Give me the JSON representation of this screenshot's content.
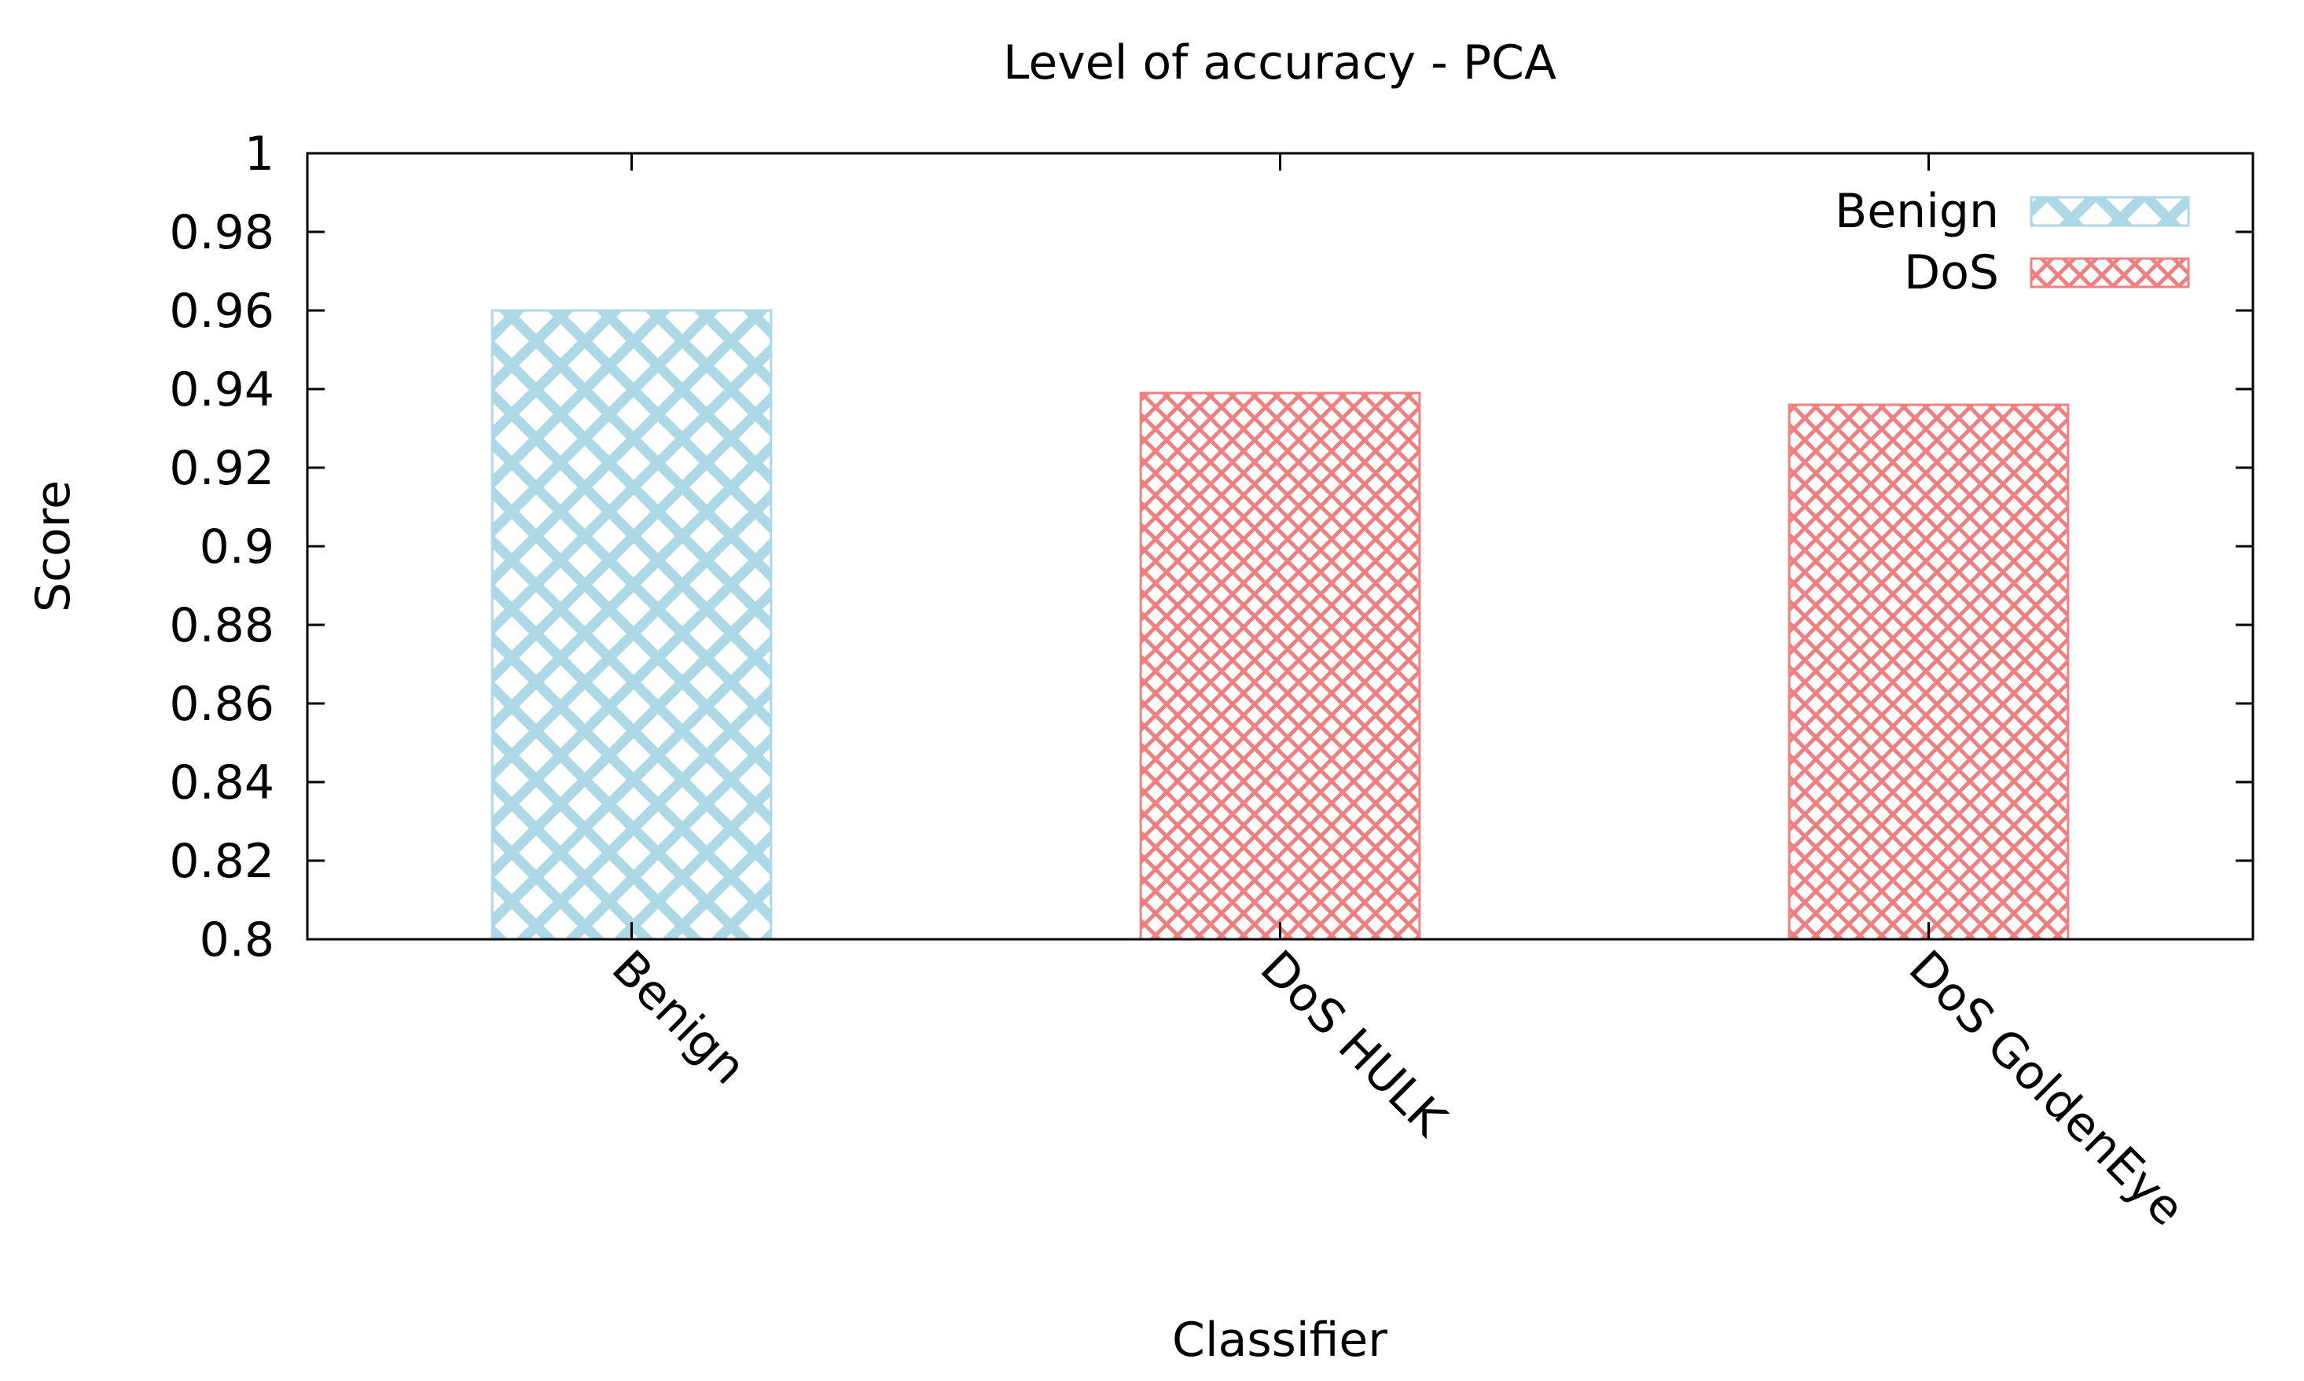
{
  "chart_data": {
    "type": "bar",
    "title": "Level of accuracy - PCA",
    "xlabel": "Classifier",
    "ylabel": "Score",
    "ylim": [
      0.8,
      1.0
    ],
    "yticks": [
      "0.8",
      "0.82",
      "0.84",
      "0.86",
      "0.88",
      "0.9",
      "0.92",
      "0.94",
      "0.96",
      "0.98",
      "1"
    ],
    "categories": [
      "Benign",
      "DoS HULK",
      "DoS GoldenEye"
    ],
    "values": [
      0.96,
      0.939,
      0.936
    ],
    "bar_series": [
      "Benign",
      "DoS",
      "DoS"
    ],
    "series": [
      {
        "name": "Benign",
        "color": "#add8e6",
        "pattern": "coarse-crosshatch"
      },
      {
        "name": "DoS",
        "color": "#f08080",
        "pattern": "fine-crosshatch"
      }
    ],
    "legend_position": "top-right",
    "grid": false
  }
}
